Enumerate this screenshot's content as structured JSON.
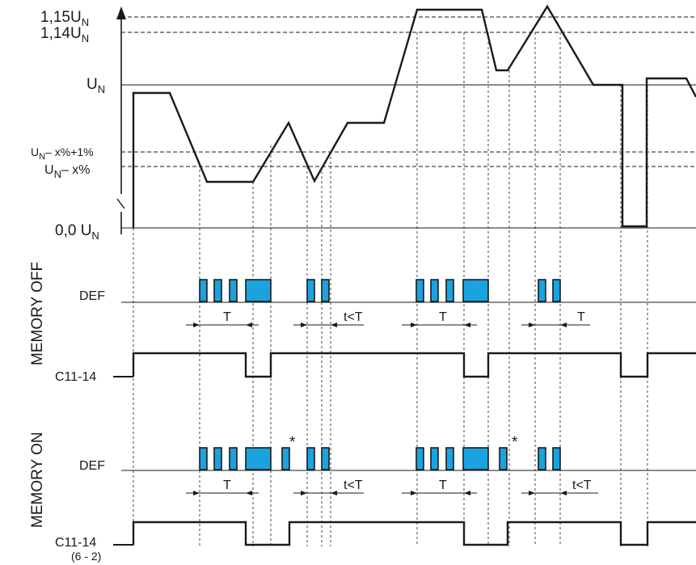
{
  "voltage_axis": {
    "labels": {
      "v115": "1,15U",
      "v114": "1,14U",
      "un": "U",
      "unx1_a": "U",
      "unx1_b": "– x%+1%",
      "unx_a": "U",
      "unx_b": "– x%",
      "zero": "0,0 U",
      "sub": "N"
    }
  },
  "memory_off": {
    "title": "MEMORY OFF",
    "def_label": "DEF",
    "relay_label": "C11-14",
    "timers": [
      "T",
      "t<T",
      "T",
      "T"
    ]
  },
  "memory_on": {
    "title": "MEMORY ON",
    "def_label": "DEF",
    "relay_label": "C11-14",
    "relay_sub": "(6 - 2)",
    "timers": [
      "T",
      "t<T",
      "T",
      "t<T"
    ],
    "markers": [
      "*",
      "*"
    ]
  },
  "colors": {
    "pulse": "#1aa3df",
    "line": "#1a1a1a"
  }
}
